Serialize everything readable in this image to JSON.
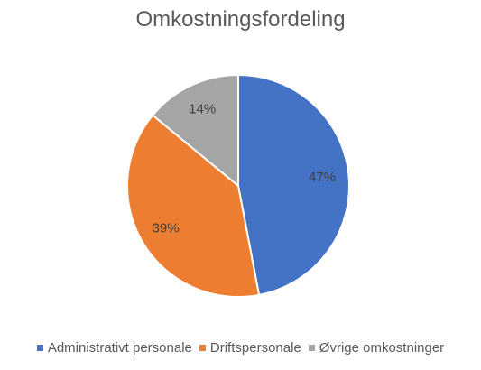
{
  "chart_data": {
    "type": "pie",
    "title": "Omkostningsfordeling",
    "categories": [
      "Administrativt personale",
      "Driftspersonale",
      "Øvrige omkostninger"
    ],
    "values": [
      47,
      39,
      14
    ],
    "labels": [
      "47%",
      "39%",
      "14%"
    ],
    "colors": [
      "#4472C4",
      "#ED7D31",
      "#A5A5A5"
    ],
    "start_angle": "12 o'clock",
    "direction": "clockwise",
    "legend_position": "bottom",
    "data_labels": "inside, percent"
  }
}
